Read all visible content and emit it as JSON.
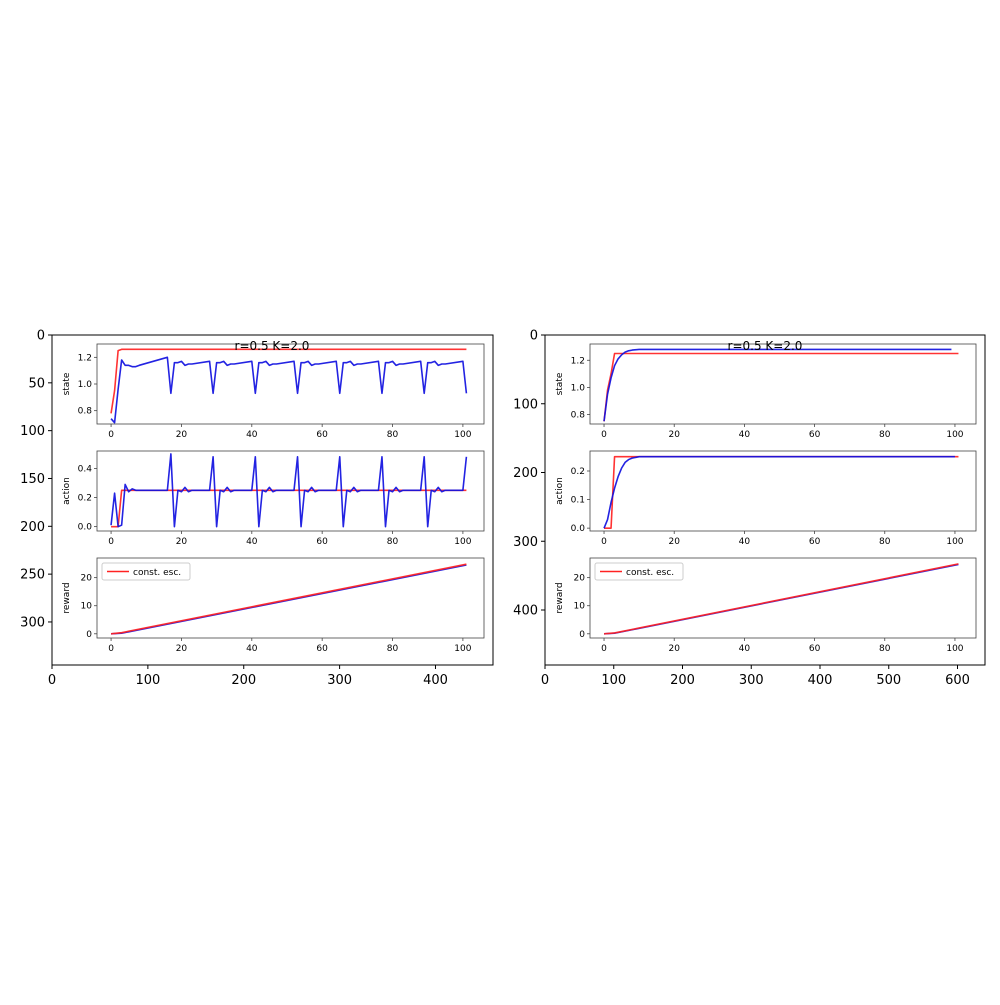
{
  "colors": {
    "red": "#ff2222",
    "blue": "#1010e0",
    "purple": "#7a2ab0"
  },
  "chart_data": [
    {
      "type": "line",
      "outer_axes": {
        "xticks": [
          "0",
          "100",
          "200",
          "300",
          "400"
        ],
        "yticks": [
          "0",
          "50",
          "100",
          "150",
          "200",
          "250",
          "300"
        ],
        "xlim": [
          0,
          460
        ],
        "ylim": [
          345,
          0
        ]
      },
      "annotation": "r=0.5 K=2.0",
      "subplots": [
        {
          "ylabel": "state",
          "xlim": [
            -4,
            106
          ],
          "ylim": [
            0.7,
            1.3
          ],
          "xticks": [
            "0",
            "20",
            "40",
            "60",
            "80",
            "100"
          ],
          "yticks": [
            "0.8",
            "1.0",
            "1.2"
          ],
          "series": [
            {
              "name": "",
              "color": "#ff2222",
              "x": [
                0,
                1,
                2,
                3,
                101
              ],
              "y": [
                0.78,
                0.95,
                1.25,
                1.26,
                1.26
              ]
            },
            {
              "name": "",
              "color": "#1010e0",
              "x": [
                0,
                1,
                2,
                3,
                4,
                5,
                6,
                7,
                8,
                16,
                17,
                18,
                19,
                20,
                21,
                22,
                23,
                28,
                29,
                30,
                31,
                32,
                33,
                34,
                35,
                40,
                41,
                42,
                43,
                44,
                45,
                46,
                47,
                52,
                53,
                54,
                55,
                56,
                57,
                58,
                59,
                64,
                65,
                66,
                67,
                68,
                69,
                70,
                71,
                76,
                77,
                78,
                79,
                80,
                81,
                82,
                83,
                88,
                89,
                90,
                91,
                92,
                93,
                94,
                95,
                100,
                101
              ],
              "y": [
                0.74,
                0.71,
                0.96,
                1.18,
                1.14,
                1.14,
                1.13,
                1.13,
                1.14,
                1.2,
                0.93,
                1.16,
                1.16,
                1.17,
                1.14,
                1.15,
                1.15,
                1.17,
                0.93,
                1.16,
                1.16,
                1.17,
                1.14,
                1.15,
                1.15,
                1.17,
                0.93,
                1.16,
                1.16,
                1.17,
                1.14,
                1.15,
                1.15,
                1.17,
                0.93,
                1.16,
                1.16,
                1.17,
                1.14,
                1.15,
                1.15,
                1.17,
                0.93,
                1.16,
                1.16,
                1.17,
                1.14,
                1.15,
                1.15,
                1.17,
                0.93,
                1.16,
                1.16,
                1.17,
                1.14,
                1.15,
                1.15,
                1.17,
                0.93,
                1.16,
                1.16,
                1.17,
                1.14,
                1.15,
                1.15,
                1.17,
                0.93
              ]
            }
          ]
        },
        {
          "ylabel": "action",
          "xlim": [
            -4,
            106
          ],
          "ylim": [
            -0.03,
            0.52
          ],
          "xticks": [
            "0",
            "20",
            "40",
            "60",
            "80",
            "100"
          ],
          "yticks": [
            "0.0",
            "0.2",
            "0.4"
          ],
          "series": [
            {
              "name": "",
              "color": "#ff2222",
              "x": [
                0,
                1,
                2,
                3,
                4,
                101
              ],
              "y": [
                0.0,
                0.0,
                0.0,
                0.25,
                0.25,
                0.25
              ]
            },
            {
              "name": "",
              "color": "#1010e0",
              "x": [
                0,
                1,
                2,
                3,
                4,
                5,
                6,
                7,
                8,
                16,
                17,
                18,
                19,
                20,
                21,
                22,
                23,
                28,
                29,
                30,
                31,
                32,
                33,
                34,
                35,
                40,
                41,
                42,
                43,
                44,
                45,
                46,
                47,
                52,
                53,
                54,
                55,
                56,
                57,
                58,
                59,
                64,
                65,
                66,
                67,
                68,
                69,
                70,
                71,
                76,
                77,
                78,
                79,
                80,
                81,
                82,
                83,
                88,
                89,
                90,
                91,
                92,
                93,
                94,
                95,
                100,
                101
              ],
              "y": [
                0.01,
                0.23,
                0.0,
                0.01,
                0.29,
                0.24,
                0.26,
                0.25,
                0.25,
                0.25,
                0.5,
                0.0,
                0.25,
                0.24,
                0.27,
                0.24,
                0.25,
                0.25,
                0.48,
                0.0,
                0.25,
                0.24,
                0.27,
                0.24,
                0.25,
                0.25,
                0.48,
                0.0,
                0.25,
                0.24,
                0.27,
                0.24,
                0.25,
                0.25,
                0.48,
                0.0,
                0.25,
                0.24,
                0.27,
                0.24,
                0.25,
                0.25,
                0.48,
                0.0,
                0.25,
                0.24,
                0.27,
                0.24,
                0.25,
                0.25,
                0.48,
                0.0,
                0.25,
                0.24,
                0.27,
                0.24,
                0.25,
                0.25,
                0.48,
                0.0,
                0.25,
                0.24,
                0.27,
                0.24,
                0.25,
                0.25,
                0.48
              ]
            }
          ]
        },
        {
          "ylabel": "reward",
          "xlim": [
            -4,
            106
          ],
          "ylim": [
            -1.5,
            27
          ],
          "xticks": [
            "0",
            "20",
            "40",
            "60",
            "80",
            "100"
          ],
          "yticks": [
            "0",
            "10",
            "20"
          ],
          "legend": {
            "label": "const. esc.",
            "position": "upper-left"
          },
          "series": [
            {
              "name": "",
              "color": "#1010e0",
              "x": [
                0,
                3,
                101
              ],
              "y": [
                0.0,
                0.2,
                24.5
              ]
            },
            {
              "name": "const. esc.",
              "color": "#ff2222",
              "x": [
                0,
                3,
                101
              ],
              "y": [
                0.0,
                0.4,
                24.8
              ]
            }
          ]
        }
      ]
    },
    {
      "type": "line",
      "outer_axes": {
        "xticks": [
          "0",
          "100",
          "200",
          "300",
          "400",
          "500",
          "600"
        ],
        "yticks": [
          "0",
          "100",
          "200",
          "300",
          "400"
        ],
        "xlim": [
          0,
          640
        ],
        "ylim": [
          480,
          0
        ]
      },
      "annotation": "r=0.5 K=2.0",
      "subplots": [
        {
          "ylabel": "state",
          "xlim": [
            -4,
            106
          ],
          "ylim": [
            0.73,
            1.32
          ],
          "xticks": [
            "0",
            "20",
            "40",
            "60",
            "80",
            "100"
          ],
          "yticks": [
            "0.8",
            "1.0",
            "1.2"
          ],
          "series": [
            {
              "name": "",
              "color": "#ff2222",
              "x": [
                0,
                1,
                2,
                3,
                101
              ],
              "y": [
                0.75,
                0.98,
                1.1,
                1.25,
                1.25
              ]
            },
            {
              "name": "",
              "color": "#1010e0",
              "x": [
                0,
                1,
                2,
                3,
                4,
                5,
                6,
                7,
                8,
                10,
                99
              ],
              "y": [
                0.75,
                0.95,
                1.07,
                1.16,
                1.21,
                1.24,
                1.26,
                1.27,
                1.275,
                1.28,
                1.28
              ]
            }
          ]
        },
        {
          "ylabel": "action",
          "xlim": [
            -4,
            106
          ],
          "ylim": [
            -0.01,
            0.27
          ],
          "xticks": [
            "0",
            "20",
            "40",
            "60",
            "80",
            "100"
          ],
          "yticks": [
            "0.0",
            "0.1",
            "0.2"
          ],
          "series": [
            {
              "name": "",
              "color": "#ff2222",
              "x": [
                0,
                1,
                2,
                3,
                4,
                101
              ],
              "y": [
                0.0,
                0.0,
                0.0,
                0.25,
                0.25,
                0.25
              ]
            },
            {
              "name": "",
              "color": "#1010e0",
              "x": [
                0,
                1,
                2,
                3,
                4,
                5,
                6,
                7,
                8,
                10,
                100
              ],
              "y": [
                0.0,
                0.03,
                0.09,
                0.14,
                0.18,
                0.21,
                0.23,
                0.24,
                0.245,
                0.25,
                0.25
              ]
            }
          ]
        },
        {
          "ylabel": "reward",
          "xlim": [
            -4,
            106
          ],
          "ylim": [
            -1.5,
            27
          ],
          "xticks": [
            "0",
            "20",
            "40",
            "60",
            "80",
            "100"
          ],
          "yticks": [
            "0",
            "10",
            "20"
          ],
          "legend": {
            "label": "const. esc.",
            "position": "upper-left"
          },
          "series": [
            {
              "name": "",
              "color": "#1010e0",
              "x": [
                0,
                3,
                101
              ],
              "y": [
                0.0,
                0.2,
                24.7
              ]
            },
            {
              "name": "const. esc.",
              "color": "#ff2222",
              "x": [
                0,
                3,
                101
              ],
              "y": [
                0.0,
                0.3,
                24.9
              ]
            }
          ]
        }
      ]
    }
  ]
}
